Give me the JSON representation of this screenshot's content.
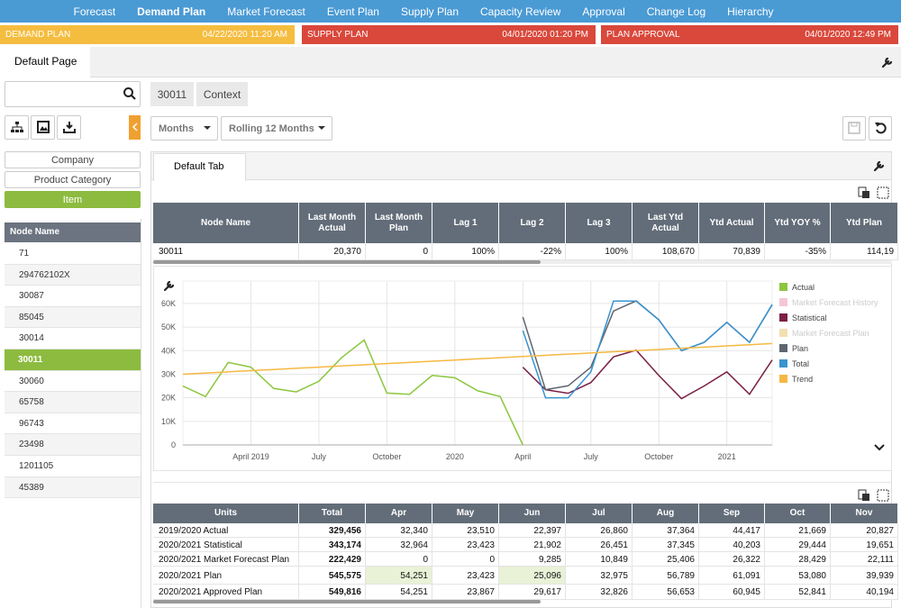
{
  "nav": {
    "items": [
      "Forecast",
      "Demand Plan",
      "Market Forecast",
      "Event Plan",
      "Supply Plan",
      "Capacity Review",
      "Approval",
      "Change Log",
      "Hierarchy"
    ],
    "active": 1
  },
  "status": [
    {
      "label": "DEMAND PLAN",
      "date": "04/22/2020 11:20 AM",
      "color": "#f5bd3f"
    },
    {
      "label": "SUPPLY PLAN",
      "date": "04/01/2020 01:20 PM",
      "color": "#d9483b"
    },
    {
      "label": "PLAN APPROVAL",
      "date": "04/01/2020 12:49 PM",
      "color": "#d9483b"
    }
  ],
  "page_tab": "Default Page",
  "breadcrumb": [
    "30011",
    "Context"
  ],
  "levels": {
    "items": [
      "Company",
      "Product Category",
      "Item"
    ],
    "selected": 2
  },
  "tree": {
    "header": "Node Name",
    "nodes": [
      "71",
      "294762102X",
      "30087",
      "85045",
      "30014",
      "30011",
      "30060",
      "65758",
      "96743",
      "23498",
      "1201105",
      "45389"
    ],
    "selected": 5
  },
  "dropdowns": [
    "Months",
    "Rolling 12 Months"
  ],
  "inner_tab": "Default Tab",
  "summary_table": {
    "columns": [
      "Node Name",
      "Last Month Actual",
      "Last Month Plan",
      "Lag 1",
      "Lag 2",
      "Lag 3",
      "Last Ytd Actual",
      "Ytd Actual",
      "Ytd YOY %",
      "Ytd Plan"
    ],
    "rows": [
      [
        "30011",
        "20,370",
        "0",
        "100%",
        "-22%",
        "100%",
        "108,670",
        "70,839",
        "-35%",
        "114,19"
      ]
    ]
  },
  "chart_data": {
    "type": "line",
    "categories": [
      null,
      null,
      null,
      "April 2019",
      null,
      null,
      "July",
      null,
      null,
      "October",
      null,
      null,
      "2020",
      null,
      null,
      "April",
      null,
      null,
      "July",
      null,
      null,
      "October",
      null,
      null,
      "2021",
      null,
      null
    ],
    "ylim": [
      0,
      69500
    ],
    "yticks": [
      0,
      {
        "value": 10000,
        "label": "10K"
      },
      {
        "value": 20000,
        "label": "20K"
      },
      {
        "value": 30000,
        "label": "30K"
      },
      {
        "value": 40000,
        "label": "40K"
      },
      {
        "value": 50000,
        "label": "50K"
      },
      {
        "value": 60000,
        "label": "60K"
      }
    ],
    "grid": true,
    "series": [
      {
        "name": "Actual",
        "color": "#8cc63f",
        "values": [
          25000,
          20500,
          35000,
          33000,
          24000,
          22500,
          27000,
          37000,
          44500,
          22000,
          21500,
          29500,
          28500,
          23000,
          20500,
          0,
          null,
          null,
          null,
          null,
          null,
          null,
          null,
          null,
          null,
          null,
          null
        ]
      },
      {
        "name": "Market Forecast History",
        "color": "#f4c7d4",
        "hidden": true,
        "values": [
          null,
          null,
          null,
          null,
          null,
          null,
          null,
          null,
          null,
          null,
          null,
          null,
          null,
          null,
          null,
          null,
          null,
          null,
          null,
          null,
          null,
          null,
          null,
          null,
          null,
          null,
          null
        ]
      },
      {
        "name": "Statistical",
        "color": "#7b1f45",
        "values": [
          null,
          null,
          null,
          null,
          null,
          null,
          null,
          null,
          null,
          null,
          null,
          null,
          null,
          null,
          null,
          32964,
          23423,
          21902,
          26451,
          37345,
          40203,
          29444,
          19651,
          25000,
          31000,
          21500,
          36000
        ]
      },
      {
        "name": "Market Forecast Plan",
        "color": "#f3dfb0",
        "hidden": true,
        "values": [
          null,
          null,
          null,
          null,
          null,
          null,
          null,
          null,
          null,
          null,
          null,
          null,
          null,
          null,
          null,
          null,
          null,
          null,
          null,
          null,
          null,
          null,
          null,
          null,
          null,
          null,
          null
        ]
      },
      {
        "name": "Plan",
        "color": "#5f6670",
        "values": [
          null,
          null,
          null,
          null,
          null,
          null,
          null,
          null,
          null,
          null,
          null,
          null,
          null,
          null,
          null,
          54251,
          23423,
          25096,
          32975,
          56789,
          61091,
          53080,
          39939,
          43500,
          52000,
          43500,
          59500
        ]
      },
      {
        "name": "Total",
        "color": "#3a93d0",
        "values": [
          null,
          null,
          null,
          null,
          null,
          null,
          null,
          null,
          null,
          null,
          null,
          null,
          null,
          null,
          null,
          48500,
          20000,
          20000,
          31000,
          61000,
          61000,
          53000,
          40000,
          43500,
          52000,
          43500,
          59500
        ]
      },
      {
        "name": "Trend",
        "color": "#f5b942",
        "values": [
          30000,
          30500,
          31000,
          31500,
          32000,
          32500,
          33000,
          33500,
          34000,
          34500,
          35000,
          35500,
          36000,
          36500,
          37000,
          37500,
          38000,
          38500,
          39000,
          39500,
          40000,
          40500,
          41000,
          41500,
          42000,
          42500,
          43000
        ]
      }
    ]
  },
  "data_table": {
    "columns": [
      "Units",
      "Total",
      "Apr",
      "May",
      "Jun",
      "Jul",
      "Aug",
      "Sep",
      "Oct",
      "Nov"
    ],
    "rows": [
      [
        "2019/2020 Actual",
        "329,456",
        "32,340",
        "23,510",
        "22,397",
        "26,860",
        "37,364",
        "44,417",
        "21,669",
        "20,827"
      ],
      [
        "2020/2021 Statistical",
        "343,174",
        "32,964",
        "23,423",
        "21,902",
        "26,451",
        "37,345",
        "40,203",
        "29,444",
        "19,651"
      ],
      [
        "2020/2021 Market Forecast Plan",
        "222,429",
        "0",
        "0",
        "9,285",
        "10,849",
        "25,406",
        "26,322",
        "28,429",
        "22,111"
      ],
      [
        "2020/2021 Plan",
        "545,575",
        "54,251",
        "23,423",
        "25,096",
        "32,975",
        "56,789",
        "61,091",
        "53,080",
        "39,939"
      ],
      [
        "2020/2021 Approved Plan",
        "549,816",
        "54,251",
        "23,867",
        "29,617",
        "32,826",
        "56,653",
        "60,945",
        "52,841",
        "40,194"
      ]
    ],
    "highlight": [
      [
        3,
        2
      ],
      [
        3,
        4
      ]
    ]
  }
}
